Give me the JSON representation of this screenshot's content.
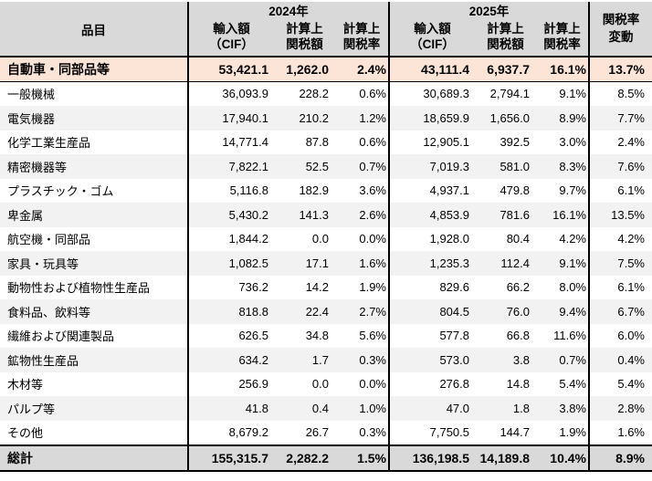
{
  "colors": {
    "header_bg": "#d9d9d9",
    "highlight_row_bg": "#fce4d6",
    "stripe_row_bg": "#f2f2f2",
    "total_row_bg": "#d9d9d9",
    "border": "#000000",
    "text": "#000000"
  },
  "chart_data": {
    "type": "table",
    "header": {
      "item": "品目",
      "year_2024": "2024年",
      "year_2025": "2025年",
      "import_line1": "輸入額",
      "import_line2": "（CIF）",
      "tariff_amount_line1": "計算上",
      "tariff_amount_line2": "関税額",
      "tariff_rate_line1": "計算上",
      "tariff_rate_line2": "関税率",
      "rate_change_line1": "関税率",
      "rate_change_line2": "変動"
    },
    "columns": [
      "品目",
      "2024年 輸入額（CIF）",
      "2024年 計算上関税額",
      "2024年 計算上関税率",
      "2025年 輸入額（CIF）",
      "2025年 計算上関税額",
      "2025年 計算上関税率",
      "関税率変動"
    ],
    "rows": [
      {
        "name": "自動車・同部品等",
        "highlight": true,
        "values": [
          "53,421.1",
          "1,262.0",
          "2.4%",
          "43,111.4",
          "6,937.7",
          "16.1%"
        ],
        "change": "13.7%"
      },
      {
        "name": "一般機械",
        "values": [
          "36,093.9",
          "228.2",
          "0.6%",
          "30,689.3",
          "2,794.1",
          "9.1%"
        ],
        "change": "8.5%"
      },
      {
        "name": "電気機器",
        "values": [
          "17,940.1",
          "210.2",
          "1.2%",
          "18,659.9",
          "1,656.0",
          "8.9%"
        ],
        "change": "7.7%"
      },
      {
        "name": "化学工業生産品",
        "values": [
          "14,771.4",
          "87.8",
          "0.6%",
          "12,905.1",
          "392.5",
          "3.0%"
        ],
        "change": "2.4%"
      },
      {
        "name": "精密機器等",
        "values": [
          "7,822.1",
          "52.5",
          "0.7%",
          "7,019.3",
          "581.0",
          "8.3%"
        ],
        "change": "7.6%"
      },
      {
        "name": "プラスチック・ゴム",
        "values": [
          "5,116.8",
          "182.9",
          "3.6%",
          "4,937.1",
          "479.8",
          "9.7%"
        ],
        "change": "6.1%"
      },
      {
        "name": "卑金属",
        "values": [
          "5,430.2",
          "141.3",
          "2.6%",
          "4,853.9",
          "781.6",
          "16.1%"
        ],
        "change": "13.5%"
      },
      {
        "name": "航空機・同部品",
        "values": [
          "1,844.2",
          "0.0",
          "0.0%",
          "1,928.0",
          "80.4",
          "4.2%"
        ],
        "change": "4.2%"
      },
      {
        "name": "家具・玩具等",
        "values": [
          "1,082.5",
          "17.1",
          "1.6%",
          "1,235.3",
          "112.4",
          "9.1%"
        ],
        "change": "7.5%"
      },
      {
        "name": "動物性および植物性生産品",
        "values": [
          "736.2",
          "14.2",
          "1.9%",
          "829.6",
          "66.2",
          "8.0%"
        ],
        "change": "6.1%"
      },
      {
        "name": "食料品、飲料等",
        "values": [
          "818.8",
          "22.4",
          "2.7%",
          "804.5",
          "76.0",
          "9.4%"
        ],
        "change": "6.7%"
      },
      {
        "name": "繊維および関連製品",
        "values": [
          "626.5",
          "34.8",
          "5.6%",
          "577.8",
          "66.8",
          "11.6%"
        ],
        "change": "6.0%"
      },
      {
        "name": "鉱物性生産品",
        "values": [
          "634.2",
          "1.7",
          "0.3%",
          "573.0",
          "3.8",
          "0.7%"
        ],
        "change": "0.4%"
      },
      {
        "name": "木材等",
        "values": [
          "256.9",
          "0.0",
          "0.0%",
          "276.8",
          "14.8",
          "5.4%"
        ],
        "change": "5.4%"
      },
      {
        "name": "パルプ等",
        "values": [
          "41.8",
          "0.4",
          "1.0%",
          "47.0",
          "1.8",
          "3.8%"
        ],
        "change": "2.8%"
      },
      {
        "name": "その他",
        "values": [
          "8,679.2",
          "26.7",
          "0.3%",
          "7,750.5",
          "144.7",
          "1.9%"
        ],
        "change": "1.6%"
      }
    ],
    "total": {
      "name": "総計",
      "values": [
        "155,315.7",
        "2,282.2",
        "1.5%",
        "136,198.5",
        "14,189.8",
        "10.4%"
      ],
      "change": "8.9%"
    }
  }
}
